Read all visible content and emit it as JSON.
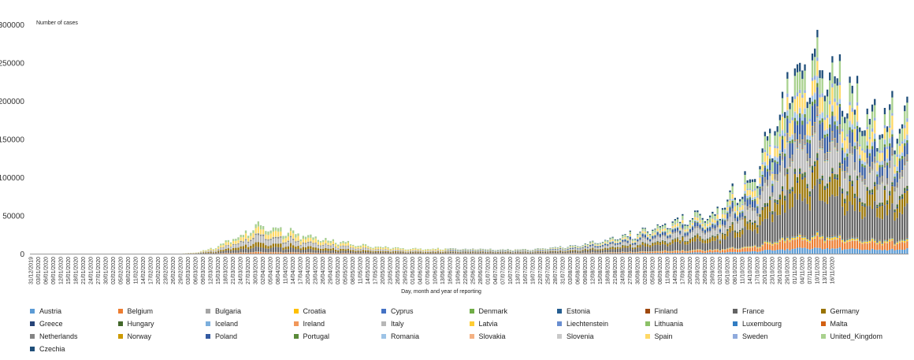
{
  "chart_data": {
    "type": "stacked_bar",
    "ylabel": "Number of cases",
    "xlabel": "Day, month and year of reporting",
    "ylim": [
      0,
      300000
    ],
    "y_ticks": [
      "0",
      "50000",
      "100000",
      "150000",
      "200000",
      "250000",
      "300000"
    ],
    "y_tick_values": [
      0,
      50000,
      100000,
      150000,
      200000,
      250000,
      300000
    ],
    "x_start": "31/12/2019",
    "x_end": "16/12/2020",
    "x_tick_labels": [
      "31/12/2019",
      "03/01/2020",
      "06/01/2020",
      "09/01/2020",
      "12/01/2020",
      "15/01/2020",
      "18/01/2020",
      "21/01/2020",
      "24/01/2020",
      "27/01/2020",
      "30/01/2020",
      "02/02/2020",
      "05/02/2020",
      "08/02/2020",
      "11/02/2020",
      "14/02/2020",
      "17/02/2020",
      "20/02/2020",
      "23/02/2020",
      "26/02/2020",
      "29/02/2020",
      "03/03/2020",
      "06/03/2020",
      "09/03/2020",
      "12/03/2020",
      "15/03/2020",
      "18/03/2020",
      "21/03/2020",
      "24/03/2020",
      "27/03/2020",
      "30/03/2020",
      "02/04/2020",
      "05/04/2020",
      "08/04/2020",
      "11/04/2020",
      "14/04/2020",
      "17/04/2020",
      "20/04/2020",
      "23/04/2020",
      "26/04/2020",
      "29/04/2020",
      "02/05/2020",
      "05/05/2020",
      "08/05/2020",
      "11/05/2020",
      "14/05/2020",
      "17/05/2020",
      "20/05/2020",
      "23/05/2020",
      "26/05/2020",
      "29/05/2020",
      "01/06/2020",
      "04/06/2020",
      "07/06/2020",
      "10/06/2020",
      "13/06/2020",
      "16/06/2020",
      "19/06/2020",
      "22/06/2020",
      "25/06/2020",
      "28/06/2020",
      "01/07/2020",
      "04/07/2020",
      "07/07/2020",
      "10/07/2020",
      "13/07/2020",
      "16/07/2020",
      "19/07/2020",
      "22/07/2020",
      "25/07/2020",
      "28/07/2020",
      "31/07/2020",
      "03/08/2020",
      "06/08/2020",
      "09/08/2020",
      "12/08/2020",
      "15/08/2020",
      "18/08/2020",
      "21/08/2020",
      "24/08/2020",
      "27/08/2020",
      "30/08/2020",
      "02/09/2020",
      "05/09/2020",
      "08/09/2020",
      "11/09/2020",
      "14/09/2020",
      "17/09/2020",
      "20/09/2020",
      "23/09/2020",
      "26/09/2020",
      "29/09/2020",
      "02/10/2020",
      "05/10/2020",
      "08/10/2020",
      "11/10/2020",
      "14/10/2020",
      "17/10/2020",
      "20/10/2020",
      "23/10/2020",
      "26/10/2020",
      "29/10/2020",
      "01/11/2020",
      "04/11/2020",
      "07/11/2020",
      "10/11/2020",
      "13/11/2020",
      "16/11/2020"
    ],
    "total_keyframes": [
      [
        "31/12/2019",
        0
      ],
      [
        "29/02/2020",
        0
      ],
      [
        "06/03/2020",
        1500
      ],
      [
        "12/03/2020",
        6000
      ],
      [
        "18/03/2020",
        14000
      ],
      [
        "24/03/2020",
        24000
      ],
      [
        "30/03/2020",
        33000
      ],
      [
        "05/04/2020",
        34000
      ],
      [
        "11/04/2020",
        30000
      ],
      [
        "17/04/2020",
        25000
      ],
      [
        "23/04/2020",
        20000
      ],
      [
        "29/04/2020",
        16000
      ],
      [
        "05/05/2020",
        14000
      ],
      [
        "11/05/2020",
        11000
      ],
      [
        "17/05/2020",
        9000
      ],
      [
        "23/05/2020",
        8000
      ],
      [
        "31/05/2020",
        6500
      ],
      [
        "10/06/2020",
        6000
      ],
      [
        "20/06/2020",
        6500
      ],
      [
        "01/07/2020",
        5500
      ],
      [
        "10/07/2020",
        5000
      ],
      [
        "20/07/2020",
        6000
      ],
      [
        "31/07/2020",
        9000
      ],
      [
        "08/08/2020",
        12000
      ],
      [
        "15/08/2020",
        16000
      ],
      [
        "22/08/2020",
        22000
      ],
      [
        "29/08/2020",
        26000
      ],
      [
        "05/09/2020",
        33000
      ],
      [
        "12/09/2020",
        40000
      ],
      [
        "19/09/2020",
        46000
      ],
      [
        "26/09/2020",
        52000
      ],
      [
        "03/10/2020",
        62000
      ],
      [
        "08/10/2020",
        80000
      ],
      [
        "13/10/2020",
        92000
      ],
      [
        "17/10/2020",
        120000
      ],
      [
        "21/10/2020",
        150000
      ],
      [
        "25/10/2020",
        175000
      ],
      [
        "29/10/2020",
        215000
      ],
      [
        "02/11/2020",
        240000
      ],
      [
        "06/11/2020",
        262000
      ],
      [
        "08/11/2020",
        264000
      ],
      [
        "12/11/2020",
        245000
      ],
      [
        "16/11/2020",
        232000
      ],
      [
        "20/11/2020",
        215000
      ],
      [
        "26/11/2020",
        195000
      ],
      [
        "02/12/2020",
        180000
      ],
      [
        "08/12/2020",
        172000
      ],
      [
        "16/12/2020",
        185000
      ]
    ],
    "series": [
      {
        "name": "Austria",
        "color": "#5b9bd5"
      },
      {
        "name": "Belgium",
        "color": "#ed7d31"
      },
      {
        "name": "Bulgaria",
        "color": "#a5a5a5"
      },
      {
        "name": "Croatia",
        "color": "#ffc000"
      },
      {
        "name": "Cyprus",
        "color": "#4472c4"
      },
      {
        "name": "Denmark",
        "color": "#70ad47"
      },
      {
        "name": "Estonia",
        "color": "#255e91"
      },
      {
        "name": "Finland",
        "color": "#9e480e"
      },
      {
        "name": "France",
        "color": "#636363"
      },
      {
        "name": "Germany",
        "color": "#997300"
      },
      {
        "name": "Greece",
        "color": "#264478"
      },
      {
        "name": "Hungary",
        "color": "#43682b"
      },
      {
        "name": "Iceland",
        "color": "#7cafdd"
      },
      {
        "name": "Ireland",
        "color": "#f1975a"
      },
      {
        "name": "Italy",
        "color": "#b7b7b7"
      },
      {
        "name": "Latvia",
        "color": "#ffcd33"
      },
      {
        "name": "Liechtenstein",
        "color": "#698ed0"
      },
      {
        "name": "Lithuania",
        "color": "#8cc168"
      },
      {
        "name": "Luxembourg",
        "color": "#327dc2"
      },
      {
        "name": "Malta",
        "color": "#d26012"
      },
      {
        "name": "Netherlands",
        "color": "#848484"
      },
      {
        "name": "Norway",
        "color": "#cc9a00"
      },
      {
        "name": "Poland",
        "color": "#335aa1"
      },
      {
        "name": "Portugal",
        "color": "#5a8a39"
      },
      {
        "name": "Romania",
        "color": "#9dc3e6"
      },
      {
        "name": "Slovakia",
        "color": "#f4b183"
      },
      {
        "name": "Slovenia",
        "color": "#c9c9c9"
      },
      {
        "name": "Spain",
        "color": "#ffd966"
      },
      {
        "name": "Sweden",
        "color": "#8faadc"
      },
      {
        "name": "United_Kingdom",
        "color": "#a9d18e"
      },
      {
        "name": "Czechia",
        "color": "#1f4e79"
      }
    ],
    "spring_shares": {
      "Italy": 0.2,
      "Spain": 0.22,
      "France": 0.18,
      "Germany": 0.15,
      "United_Kingdom": 0.15,
      "Belgium": 0.05,
      "Netherlands": 0.05
    },
    "autumn_shares": {
      "France": 0.22,
      "Spain": 0.08,
      "Italy": 0.14,
      "Germany": 0.1,
      "United_Kingdom": 0.1,
      "Poland": 0.09,
      "Belgium": 0.05,
      "Czechia": 0.04,
      "Netherlands": 0.04,
      "Romania": 0.03,
      "Austria": 0.03,
      "Hungary": 0.02,
      "Portugal": 0.02,
      "Sweden": 0.02,
      "Greece": 0.01,
      "Croatia": 0.01
    },
    "legend_placement": "bottom",
    "grid": false
  }
}
